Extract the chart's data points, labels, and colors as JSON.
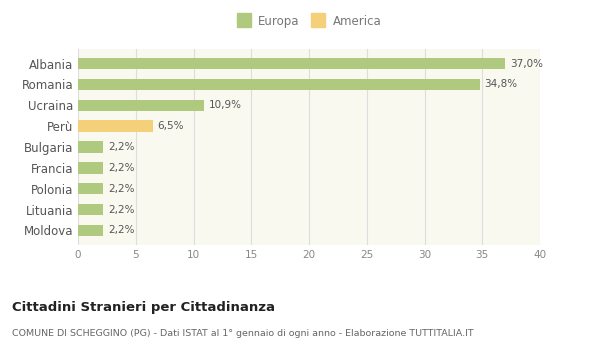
{
  "categories": [
    "Albania",
    "Romania",
    "Ucraina",
    "Perù",
    "Bulgaria",
    "Francia",
    "Polonia",
    "Lituania",
    "Moldova"
  ],
  "values": [
    37.0,
    34.8,
    10.9,
    6.5,
    2.2,
    2.2,
    2.2,
    2.2,
    2.2
  ],
  "colors": [
    "#afc97e",
    "#afc97e",
    "#afc97e",
    "#f5d07a",
    "#afc97e",
    "#afc97e",
    "#afc97e",
    "#afc97e",
    "#afc97e"
  ],
  "labels": [
    "37,0%",
    "34,8%",
    "10,9%",
    "6,5%",
    "2,2%",
    "2,2%",
    "2,2%",
    "2,2%",
    "2,2%"
  ],
  "xlim": [
    0,
    40
  ],
  "xticks": [
    0,
    5,
    10,
    15,
    20,
    25,
    30,
    35,
    40
  ],
  "legend_europa_color": "#afc97e",
  "legend_america_color": "#f5d07a",
  "title": "Cittadini Stranieri per Cittadinanza",
  "subtitle": "COMUNE DI SCHEGGINO (PG) - Dati ISTAT al 1° gennaio di ogni anno - Elaborazione TUTTITALIA.IT",
  "bg_color": "#ffffff",
  "plot_bg_color": "#f9f9f0",
  "grid_color": "#dddddd"
}
